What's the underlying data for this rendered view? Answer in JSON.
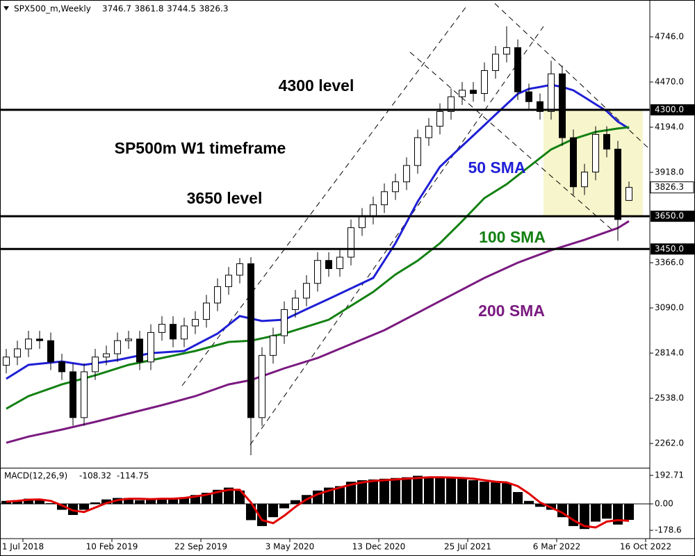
{
  "chart_data": [
    {
      "type": "candlestick",
      "symbol": "SPX500_m,Weekly",
      "xlim": [
        -8.25,
        225.5
      ],
      "ylim": [
        2118,
        4971
      ],
      "yticks": [
        {
          "value": 4746,
          "label": "4746.0"
        },
        {
          "value": 4470,
          "label": "4470.0"
        },
        {
          "value": 4194,
          "label": "4194.0"
        },
        {
          "value": 3918,
          "label": "3918.0"
        },
        {
          "value": 3366,
          "label": "3366.0"
        },
        {
          "value": 3090,
          "label": "3090.0"
        },
        {
          "value": 2814,
          "label": "2814.0"
        },
        {
          "value": 2538,
          "label": "2538.0"
        },
        {
          "value": 2262,
          "label": "2262.0"
        }
      ],
      "x": [
        -6,
        -2,
        2,
        6,
        10,
        14,
        18,
        22,
        26,
        30,
        34,
        38,
        42,
        46,
        50,
        54,
        58,
        62,
        66,
        70,
        74,
        78,
        82,
        86,
        90,
        94,
        98,
        102,
        106,
        110,
        114,
        118,
        122,
        126,
        130,
        134,
        138,
        142,
        146,
        150,
        154,
        158,
        162,
        166,
        170,
        174,
        178,
        182,
        186,
        190,
        194,
        198,
        202,
        206,
        210,
        214,
        218
      ],
      "open": [
        2740,
        2790,
        2840,
        2900,
        2890,
        2760,
        2700,
        2420,
        2700,
        2790,
        2810,
        2890,
        2900,
        2760,
        2940,
        2990,
        2900,
        2980,
        3020,
        3120,
        3220,
        3290,
        3360,
        2420,
        2800,
        2920,
        3080,
        3150,
        3240,
        3380,
        3330,
        3400,
        3580,
        3650,
        3720,
        3800,
        3860,
        3960,
        4130,
        4200,
        4290,
        4380,
        4420,
        4400,
        4540,
        4640,
        4680,
        4410,
        4350,
        4290,
        4520,
        4130,
        3830,
        3920,
        4150,
        4060,
        3746.7
      ],
      "high": [
        2840,
        2890,
        2950,
        2950,
        2940,
        2810,
        2750,
        2750,
        2840,
        2860,
        2940,
        2950,
        2950,
        2990,
        3040,
        3040,
        3030,
        3070,
        3170,
        3270,
        3340,
        3395,
        3400,
        2850,
        2970,
        3130,
        3200,
        3290,
        3430,
        3430,
        3450,
        3630,
        3700,
        3770,
        3850,
        3910,
        4010,
        4180,
        4250,
        4340,
        4430,
        4470,
        4470,
        4590,
        4690,
        4810,
        4730,
        4460,
        4400,
        4600,
        4570,
        4180,
        3970,
        4200,
        4200,
        4110,
        3861.8
      ],
      "low": [
        2690,
        2740,
        2790,
        2840,
        2710,
        2650,
        2370,
        2370,
        2650,
        2740,
        2760,
        2840,
        2710,
        2710,
        2890,
        2850,
        2850,
        2930,
        2970,
        3070,
        3170,
        3240,
        2190,
        2370,
        2750,
        2870,
        3030,
        3100,
        3190,
        3280,
        3280,
        3350,
        3530,
        3600,
        3670,
        3750,
        3810,
        3910,
        4080,
        4150,
        4240,
        4330,
        4350,
        4350,
        4490,
        4590,
        4360,
        4300,
        4240,
        4240,
        4080,
        3780,
        3780,
        3870,
        4010,
        3500,
        3744.5
      ],
      "close": [
        2790,
        2840,
        2900,
        2890,
        2760,
        2700,
        2420,
        2700,
        2790,
        2810,
        2890,
        2900,
        2760,
        2940,
        2990,
        2900,
        2980,
        3020,
        3120,
        3220,
        3290,
        3360,
        2420,
        2800,
        2920,
        3080,
        3150,
        3240,
        3380,
        3330,
        3400,
        3580,
        3650,
        3720,
        3800,
        3860,
        3960,
        4130,
        4200,
        4290,
        4380,
        4420,
        4400,
        4540,
        4640,
        4680,
        4410,
        4350,
        4290,
        4520,
        4130,
        3830,
        3920,
        4150,
        4060,
        3630,
        3826.3
      ],
      "candle_colors": {
        "up": "#ffffff",
        "down": "#000000"
      },
      "levels": [
        {
          "value": 4300,
          "label": "4300.0"
        },
        {
          "value": 3650,
          "label": "3650.0"
        },
        {
          "value": 3450,
          "label": "3450.0"
        }
      ],
      "series": [
        {
          "name": "50 SMA",
          "color": "#1f1fd6",
          "x": [
            -6,
            2,
            14,
            22,
            34,
            46,
            58,
            70,
            78,
            86,
            94,
            102,
            110,
            118,
            126,
            130,
            134,
            138,
            142,
            146,
            150,
            154,
            158,
            162,
            166,
            170,
            174,
            178,
            182,
            186,
            190,
            194,
            198,
            202,
            206,
            210,
            214,
            218
          ],
          "values": [
            2657,
            2742,
            2763,
            2742,
            2772,
            2814,
            2827,
            2933,
            3040,
            3010,
            3018,
            3082,
            3145,
            3209,
            3273,
            3379,
            3485,
            3612,
            3740,
            3846,
            3952,
            4016,
            4080,
            4143,
            4207,
            4271,
            4334,
            4398,
            4428,
            4440,
            4453,
            4440,
            4419,
            4377,
            4334,
            4292,
            4228,
            4186
          ]
        },
        {
          "name": "100 SMA",
          "color": "#128012",
          "x": [
            -6,
            2,
            14,
            26,
            38,
            50,
            62,
            74,
            82,
            94,
            102,
            110,
            118,
            126,
            134,
            142,
            150,
            158,
            166,
            174,
            182,
            190,
            198,
            206,
            214,
            218
          ],
          "values": [
            2474,
            2551,
            2623,
            2678,
            2742,
            2784,
            2827,
            2882,
            2890,
            2933,
            2975,
            3018,
            3103,
            3188,
            3294,
            3379,
            3485,
            3620,
            3761,
            3846,
            3952,
            4058,
            4122,
            4165,
            4186,
            4194
          ]
        },
        {
          "name": "200 SMA",
          "color": "#7a1a80",
          "x": [
            -6,
            2,
            14,
            26,
            38,
            50,
            62,
            74,
            82,
            94,
            106,
            118,
            130,
            142,
            154,
            166,
            178,
            190,
            202,
            214,
            218
          ],
          "values": [
            2266,
            2304,
            2347,
            2394,
            2445,
            2496,
            2551,
            2623,
            2649,
            2721,
            2784,
            2869,
            2954,
            3060,
            3167,
            3273,
            3366,
            3442,
            3506,
            3578,
            3620
          ]
        }
      ],
      "annotations": [
        "4300 level",
        "SP500m W1 timeframe",
        "3650 level"
      ]
    },
    {
      "type": "macd",
      "title": "MACD(12,26,9)",
      "xlim": [
        -8.25,
        225.5
      ],
      "ylim": [
        -225.6,
        235
      ],
      "yticks": [
        192.71,
        {
          "value": 0,
          "label": "0.00"
        },
        -178.6
      ],
      "xticks": [
        {
          "value": 0,
          "label": "1 Jul 2018"
        },
        {
          "value": 32,
          "label": "10 Feb 2019"
        },
        {
          "value": 64,
          "label": "22 Sep 2019"
        },
        {
          "value": 96,
          "label": "3 May 2020"
        },
        {
          "value": 128,
          "label": "13 Dec 2020"
        },
        {
          "value": 160,
          "label": "25 Jul 2021"
        },
        {
          "value": 192,
          "label": "6 Mar 2022"
        },
        {
          "value": 224,
          "label": "16 Oct 2022"
        }
      ],
      "x": [
        -6,
        -2,
        2,
        6,
        10,
        14,
        18,
        22,
        26,
        30,
        34,
        38,
        42,
        46,
        50,
        54,
        58,
        62,
        66,
        70,
        74,
        78,
        82,
        86,
        90,
        94,
        98,
        102,
        106,
        110,
        114,
        118,
        122,
        126,
        130,
        134,
        138,
        142,
        146,
        150,
        154,
        158,
        162,
        166,
        170,
        174,
        178,
        182,
        186,
        190,
        194,
        198,
        202,
        206,
        210,
        214,
        218
      ],
      "histogram": {
        "color": "#000000",
        "values": [
          20,
          25,
          35,
          30,
          5,
          -40,
          -75,
          -40,
          10,
          30,
          40,
          40,
          25,
          30,
          40,
          35,
          45,
          60,
          75,
          95,
          110,
          90,
          -110,
          -150,
          -90,
          -30,
          25,
          60,
          90,
          110,
          120,
          150,
          160,
          165,
          170,
          175,
          180,
          190,
          185,
          180,
          175,
          175,
          160,
          150,
          145,
          140,
          80,
          20,
          -20,
          -40,
          -90,
          -150,
          -170,
          -120,
          -100,
          -140,
          -108.32
        ]
      },
      "signal": {
        "color": "#e00000",
        "values": [
          15,
          20,
          28,
          30,
          20,
          -10,
          -45,
          -55,
          -25,
          5,
          25,
          35,
          35,
          32,
          35,
          35,
          40,
          50,
          62,
          80,
          95,
          95,
          10,
          -110,
          -130,
          -80,
          -20,
          30,
          65,
          90,
          110,
          130,
          145,
          155,
          160,
          165,
          170,
          175,
          180,
          180,
          178,
          175,
          170,
          160,
          150,
          145,
          120,
          70,
          10,
          -25,
          -60,
          -110,
          -150,
          -160,
          -120,
          -110,
          -114.75
        ]
      }
    }
  ]
}
